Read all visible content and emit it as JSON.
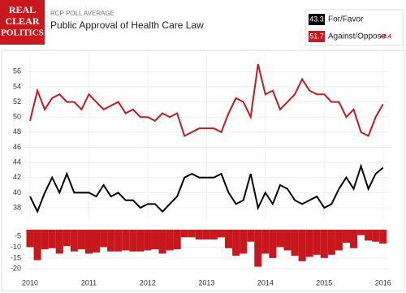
{
  "header": {
    "logo": [
      "REAL",
      "CLEAR",
      "POLITICS"
    ],
    "kicker": "RCP POLL AVERAGE",
    "title": "Public Approval of Health Care Law",
    "legend": [
      {
        "value": "43.3",
        "label": "For/Favor",
        "color": "#000000"
      },
      {
        "value": "51.7",
        "label": "Against/Oppose",
        "color": "#c8171d",
        "spread": "+8.4"
      }
    ]
  },
  "chart_data": [
    {
      "type": "line",
      "x": [
        2010,
        2010.125,
        2010.25,
        2010.375,
        2010.5,
        2010.625,
        2010.75,
        2010.875,
        2011,
        2011.125,
        2011.25,
        2011.375,
        2011.5,
        2011.625,
        2011.75,
        2011.875,
        2012,
        2012.125,
        2012.25,
        2012.375,
        2012.5,
        2012.625,
        2012.75,
        2012.875,
        2013,
        2013.125,
        2013.25,
        2013.375,
        2013.5,
        2013.625,
        2013.75,
        2013.875,
        2014,
        2014.125,
        2014.25,
        2014.375,
        2014.5,
        2014.625,
        2014.75,
        2014.875,
        2015,
        2015.125,
        2015.25,
        2015.375,
        2015.5,
        2015.625,
        2015.75,
        2015.875,
        2016
      ],
      "series": [
        {
          "name": "Against/Oppose",
          "color": "#c8171d",
          "values": [
            49.5,
            53.5,
            51,
            52.5,
            53,
            52,
            52,
            51,
            53,
            52,
            51,
            51.5,
            52,
            50.5,
            51,
            50,
            50,
            49.5,
            50.5,
            50,
            50.5,
            47.5,
            48,
            48.5,
            48.5,
            48.5,
            48,
            50.5,
            52.5,
            52,
            50,
            57,
            53,
            53.5,
            51,
            52,
            53,
            55,
            53.5,
            53,
            53,
            52,
            52,
            50,
            51,
            48,
            47.5,
            50,
            51.7
          ]
        },
        {
          "name": "For/Favor",
          "color": "#000000",
          "values": [
            39.5,
            37.5,
            40,
            42,
            40,
            42.5,
            40,
            40,
            40,
            39.5,
            41,
            39.5,
            40,
            39,
            39,
            38,
            38.5,
            38.5,
            37.5,
            38.5,
            39.5,
            42,
            42.5,
            42,
            42,
            42,
            42.5,
            40,
            38.5,
            39,
            42.5,
            38,
            40,
            38.5,
            41,
            40.5,
            39,
            38.5,
            39,
            39.5,
            38,
            38.5,
            40.5,
            42,
            40.5,
            43.5,
            40.5,
            42.5,
            43.3
          ]
        }
      ],
      "xlim": [
        2009.95,
        2016.1
      ],
      "xticks": [
        2010,
        2011,
        2012,
        2013,
        2014,
        2015,
        2016
      ],
      "ylim": [
        36.5,
        58.5
      ],
      "yticks": [
        38,
        40,
        42,
        44,
        46,
        48,
        50,
        52,
        54,
        56
      ],
      "grid": true
    },
    {
      "type": "bar",
      "x": [
        2010,
        2010.125,
        2010.25,
        2010.375,
        2010.5,
        2010.625,
        2010.75,
        2010.875,
        2011,
        2011.125,
        2011.25,
        2011.375,
        2011.5,
        2011.625,
        2011.75,
        2011.875,
        2012,
        2012.125,
        2012.25,
        2012.375,
        2012.5,
        2012.625,
        2012.75,
        2012.875,
        2013,
        2013.125,
        2013.25,
        2013.375,
        2013.5,
        2013.625,
        2013.75,
        2013.875,
        2014,
        2014.125,
        2014.25,
        2014.375,
        2014.5,
        2014.625,
        2014.75,
        2014.875,
        2015,
        2015.125,
        2015.25,
        2015.375,
        2015.5,
        2015.625,
        2015.75,
        2015.875,
        2016
      ],
      "values": [
        -10,
        -16,
        -11,
        -10.5,
        -13,
        -9.5,
        -12,
        -11,
        -13,
        -12.5,
        -10,
        -12,
        -12,
        -11.5,
        -12,
        -12,
        -11.5,
        -11,
        -13,
        -11.5,
        -11,
        -5.5,
        -5.5,
        -6.5,
        -6.5,
        -6.5,
        -5.5,
        -10.5,
        -14,
        -13,
        -7.5,
        -19,
        -13,
        -15,
        -10,
        -11.5,
        -14,
        -16.5,
        -14.5,
        -13.5,
        -15,
        -13.5,
        -11.5,
        -8,
        -10.5,
        -4.5,
        -7,
        -7.5,
        -8.4
      ],
      "color": "#c8171d",
      "xlim": [
        2009.95,
        2016.1
      ],
      "xticks": [
        2010,
        2011,
        2012,
        2013,
        2014,
        2015,
        2016
      ],
      "ylim": [
        -22.5,
        -2
      ],
      "yticks": [
        -5,
        -10,
        -15,
        -20
      ],
      "grid": true
    }
  ]
}
